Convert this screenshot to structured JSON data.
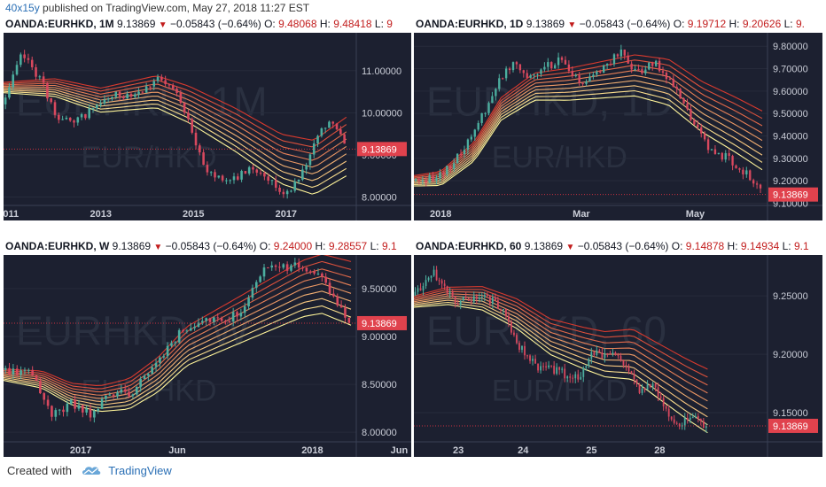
{
  "header": {
    "user": "40x15y",
    "published_text": "published on TradingView.com, May 27, 2018 11:27 EST"
  },
  "footer": {
    "created_with": "Created with",
    "brand": "TradingView",
    "logo_icon": "tradingview-cloud-icon"
  },
  "colors": {
    "panel_bg": "#1c2030",
    "up_candle": "#4cae9f",
    "down_candle": "#d8485e",
    "price_line": "#c7303f",
    "price_label_bg": "#e0424d",
    "ribbon_fast": "#fff59a",
    "ribbon_slow": "#d93a2e"
  },
  "charts": [
    {
      "symbol": "OANDA:EURHKD",
      "interval": "1M",
      "price": "9.13869",
      "change": "−0.05843 (−0.64%)",
      "o_label": "O:",
      "o_value": "9.48068",
      "h_label": "H:",
      "h_value": "9.48418",
      "l_label": "L:",
      "l_value": "9",
      "watermark_line1": "EURHKD, 1M",
      "watermark_line2": "EUR/HKD",
      "last_price_label": "9.13869",
      "y_ticks": [
        "11.00000",
        "10.00000",
        "9.00000",
        "8.00000"
      ],
      "x_ticks": [
        "2011",
        "2013",
        "2015",
        "2017"
      ]
    },
    {
      "symbol": "OANDA:EURHKD",
      "interval": "1D",
      "price": "9.13869",
      "change": "−0.05843 (−0.64%)",
      "o_label": "O:",
      "o_value": "9.19712",
      "h_label": "H:",
      "h_value": "9.20626",
      "l_label": "L:",
      "l_value": "9.",
      "watermark_line1": "EURHKD, 1D",
      "watermark_line2": "EUR/HKD",
      "last_price_label": "9.13869",
      "y_ticks": [
        "9.80000",
        "9.70000",
        "9.60000",
        "9.50000",
        "9.40000",
        "9.30000",
        "9.20000",
        "9.10000"
      ],
      "x_ticks": [
        "2018",
        "Mar",
        "May"
      ]
    },
    {
      "symbol": "OANDA:EURHKD",
      "interval": "W",
      "price": "9.13869",
      "change": "−0.05843 (−0.64%)",
      "o_label": "O:",
      "o_value": "9.24000",
      "h_label": "H:",
      "h_value": "9.28557",
      "l_label": "L:",
      "l_value": "9.1",
      "watermark_line1": "EURHKD, W",
      "watermark_line2": "EUR/HKD",
      "last_price_label": "9.13869",
      "y_ticks": [
        "9.50000",
        "9.00000",
        "8.50000",
        "8.00000"
      ],
      "x_ticks": [
        "2017",
        "Jun",
        "2018",
        "Jun"
      ]
    },
    {
      "symbol": "OANDA:EURHKD",
      "interval": "60",
      "price": "9.13869",
      "change": "−0.05843 (−0.64%)",
      "o_label": "O:",
      "o_value": "9.14878",
      "h_label": "H:",
      "h_value": "9.14934",
      "l_label": "L:",
      "l_value": "9.1",
      "watermark_line1": "EURHKD, 60",
      "watermark_line2": "EUR/HKD",
      "last_price_label": "9.13869",
      "y_ticks": [
        "9.25000",
        "9.20000",
        "9.15000"
      ],
      "x_ticks": [
        "23",
        "24",
        "25",
        "28"
      ]
    }
  ],
  "chart_data": [
    {
      "type": "candlestick",
      "title": "OANDA:EURHKD, 1M",
      "ylim": [
        7.8,
        11.9
      ],
      "x_range": [
        2010.9,
        2018.4
      ],
      "last_price": 9.13869,
      "x_tick_values": [
        2011,
        2013,
        2015,
        2017
      ],
      "y_tick_values": [
        11.0,
        10.0,
        9.0,
        8.0
      ],
      "path": [
        [
          2010.9,
          10.2
        ],
        [
          2011.3,
          11.4
        ],
        [
          2011.7,
          10.8
        ],
        [
          2012.0,
          10.0
        ],
        [
          2012.4,
          9.7
        ],
        [
          2012.8,
          10.1
        ],
        [
          2013.3,
          10.4
        ],
        [
          2013.8,
          10.5
        ],
        [
          2014.2,
          10.8
        ],
        [
          2014.6,
          10.5
        ],
        [
          2014.9,
          9.9
        ],
        [
          2015.2,
          8.7
        ],
        [
          2015.5,
          8.5
        ],
        [
          2015.9,
          8.4
        ],
        [
          2016.2,
          8.7
        ],
        [
          2016.5,
          8.6
        ],
        [
          2016.9,
          8.1
        ],
        [
          2017.2,
          8.3
        ],
        [
          2017.5,
          9.0
        ],
        [
          2017.8,
          9.6
        ],
        [
          2018.0,
          9.8
        ],
        [
          2018.3,
          9.14
        ]
      ],
      "ribbon": [
        [
          2010.9,
          10.6
        ],
        [
          2012.0,
          10.6
        ],
        [
          2013.0,
          10.3
        ],
        [
          2014.2,
          10.5
        ],
        [
          2014.9,
          10.2
        ],
        [
          2015.9,
          9.6
        ],
        [
          2016.9,
          8.9
        ],
        [
          2017.6,
          8.7
        ],
        [
          2018.3,
          9.2
        ]
      ]
    },
    {
      "type": "candlestick",
      "title": "OANDA:EURHKD, 1D",
      "ylim": [
        9.09,
        9.86
      ],
      "x_range": [
        0.0,
        5.2
      ],
      "x_unit": "months since 2018",
      "last_price": 9.13869,
      "x_tick_values": [
        0.4,
        2.5,
        4.2
      ],
      "y_tick_values": [
        9.8,
        9.7,
        9.6,
        9.5,
        9.4,
        9.3,
        9.2,
        9.1
      ],
      "path": [
        [
          0.0,
          9.2
        ],
        [
          0.4,
          9.22
        ],
        [
          0.7,
          9.32
        ],
        [
          1.0,
          9.48
        ],
        [
          1.3,
          9.66
        ],
        [
          1.5,
          9.74
        ],
        [
          1.7,
          9.66
        ],
        [
          1.9,
          9.7
        ],
        [
          2.2,
          9.74
        ],
        [
          2.5,
          9.62
        ],
        [
          2.8,
          9.7
        ],
        [
          3.1,
          9.78
        ],
        [
          3.3,
          9.68
        ],
        [
          3.6,
          9.72
        ],
        [
          3.8,
          9.66
        ],
        [
          4.1,
          9.5
        ],
        [
          4.4,
          9.34
        ],
        [
          4.7,
          9.3
        ],
        [
          5.0,
          9.22
        ],
        [
          5.2,
          9.14
        ]
      ],
      "ribbon": [
        [
          0.0,
          9.2
        ],
        [
          0.4,
          9.21
        ],
        [
          0.9,
          9.33
        ],
        [
          1.3,
          9.52
        ],
        [
          1.8,
          9.62
        ],
        [
          2.3,
          9.63
        ],
        [
          2.8,
          9.65
        ],
        [
          3.3,
          9.67
        ],
        [
          3.8,
          9.64
        ],
        [
          4.3,
          9.53
        ],
        [
          4.8,
          9.45
        ],
        [
          5.2,
          9.38
        ]
      ]
    },
    {
      "type": "candlestick",
      "title": "OANDA:EURHKD, W",
      "ylim": [
        7.9,
        9.85
      ],
      "x_range": [
        0.0,
        18.0
      ],
      "x_unit": "months since Sep 2016",
      "last_price": 9.13869,
      "x_tick_values": [
        4.0,
        9.0,
        16.0,
        20.5
      ],
      "y_tick_values": [
        9.5,
        9.0,
        8.5,
        8.0
      ],
      "path": [
        [
          0.0,
          8.65
        ],
        [
          1.5,
          8.6
        ],
        [
          2.5,
          8.2
        ],
        [
          3.5,
          8.3
        ],
        [
          4.5,
          8.2
        ],
        [
          5.5,
          8.4
        ],
        [
          6.5,
          8.4
        ],
        [
          7.5,
          8.6
        ],
        [
          8.5,
          8.9
        ],
        [
          9.5,
          9.1
        ],
        [
          10.5,
          9.2
        ],
        [
          11.5,
          9.15
        ],
        [
          12.5,
          9.3
        ],
        [
          13.5,
          9.7
        ],
        [
          14.5,
          9.72
        ],
        [
          15.5,
          9.75
        ],
        [
          16.5,
          9.6
        ],
        [
          17.3,
          9.35
        ],
        [
          18.0,
          9.14
        ]
      ],
      "ribbon": [
        [
          0.0,
          8.6
        ],
        [
          2.0,
          8.55
        ],
        [
          3.5,
          8.4
        ],
        [
          5.0,
          8.35
        ],
        [
          6.5,
          8.4
        ],
        [
          8.0,
          8.6
        ],
        [
          9.5,
          8.9
        ],
        [
          11.0,
          9.05
        ],
        [
          12.5,
          9.2
        ],
        [
          14.0,
          9.35
        ],
        [
          15.5,
          9.5
        ],
        [
          16.5,
          9.55
        ],
        [
          18.0,
          9.45
        ]
      ]
    },
    {
      "type": "candlestick",
      "title": "OANDA:EURHKD, 60",
      "ylim": [
        9.125,
        9.285
      ],
      "x_range": [
        0.0,
        5.1
      ],
      "x_unit": "days",
      "last_price": 9.13869,
      "x_tick_values": [
        0.65,
        1.6,
        2.6,
        3.6
      ],
      "y_tick_values": [
        9.25,
        9.2,
        9.15
      ],
      "path": [
        [
          0.0,
          9.25
        ],
        [
          0.3,
          9.27
        ],
        [
          0.6,
          9.245
        ],
        [
          1.0,
          9.25
        ],
        [
          1.3,
          9.24
        ],
        [
          1.5,
          9.21
        ],
        [
          1.8,
          9.19
        ],
        [
          2.1,
          9.185
        ],
        [
          2.4,
          9.18
        ],
        [
          2.6,
          9.2
        ],
        [
          2.9,
          9.2
        ],
        [
          3.1,
          9.19
        ],
        [
          3.3,
          9.17
        ],
        [
          3.5,
          9.175
        ],
        [
          3.7,
          9.15
        ],
        [
          3.9,
          9.14
        ],
        [
          4.1,
          9.145
        ],
        [
          4.3,
          9.139
        ]
      ],
      "ribbon": [
        [
          0.0,
          9.245
        ],
        [
          0.5,
          9.25
        ],
        [
          1.0,
          9.248
        ],
        [
          1.5,
          9.235
        ],
        [
          2.0,
          9.215
        ],
        [
          2.5,
          9.205
        ],
        [
          2.8,
          9.2
        ],
        [
          3.2,
          9.2
        ],
        [
          3.6,
          9.185
        ],
        [
          4.0,
          9.17
        ],
        [
          4.3,
          9.16
        ]
      ]
    }
  ]
}
